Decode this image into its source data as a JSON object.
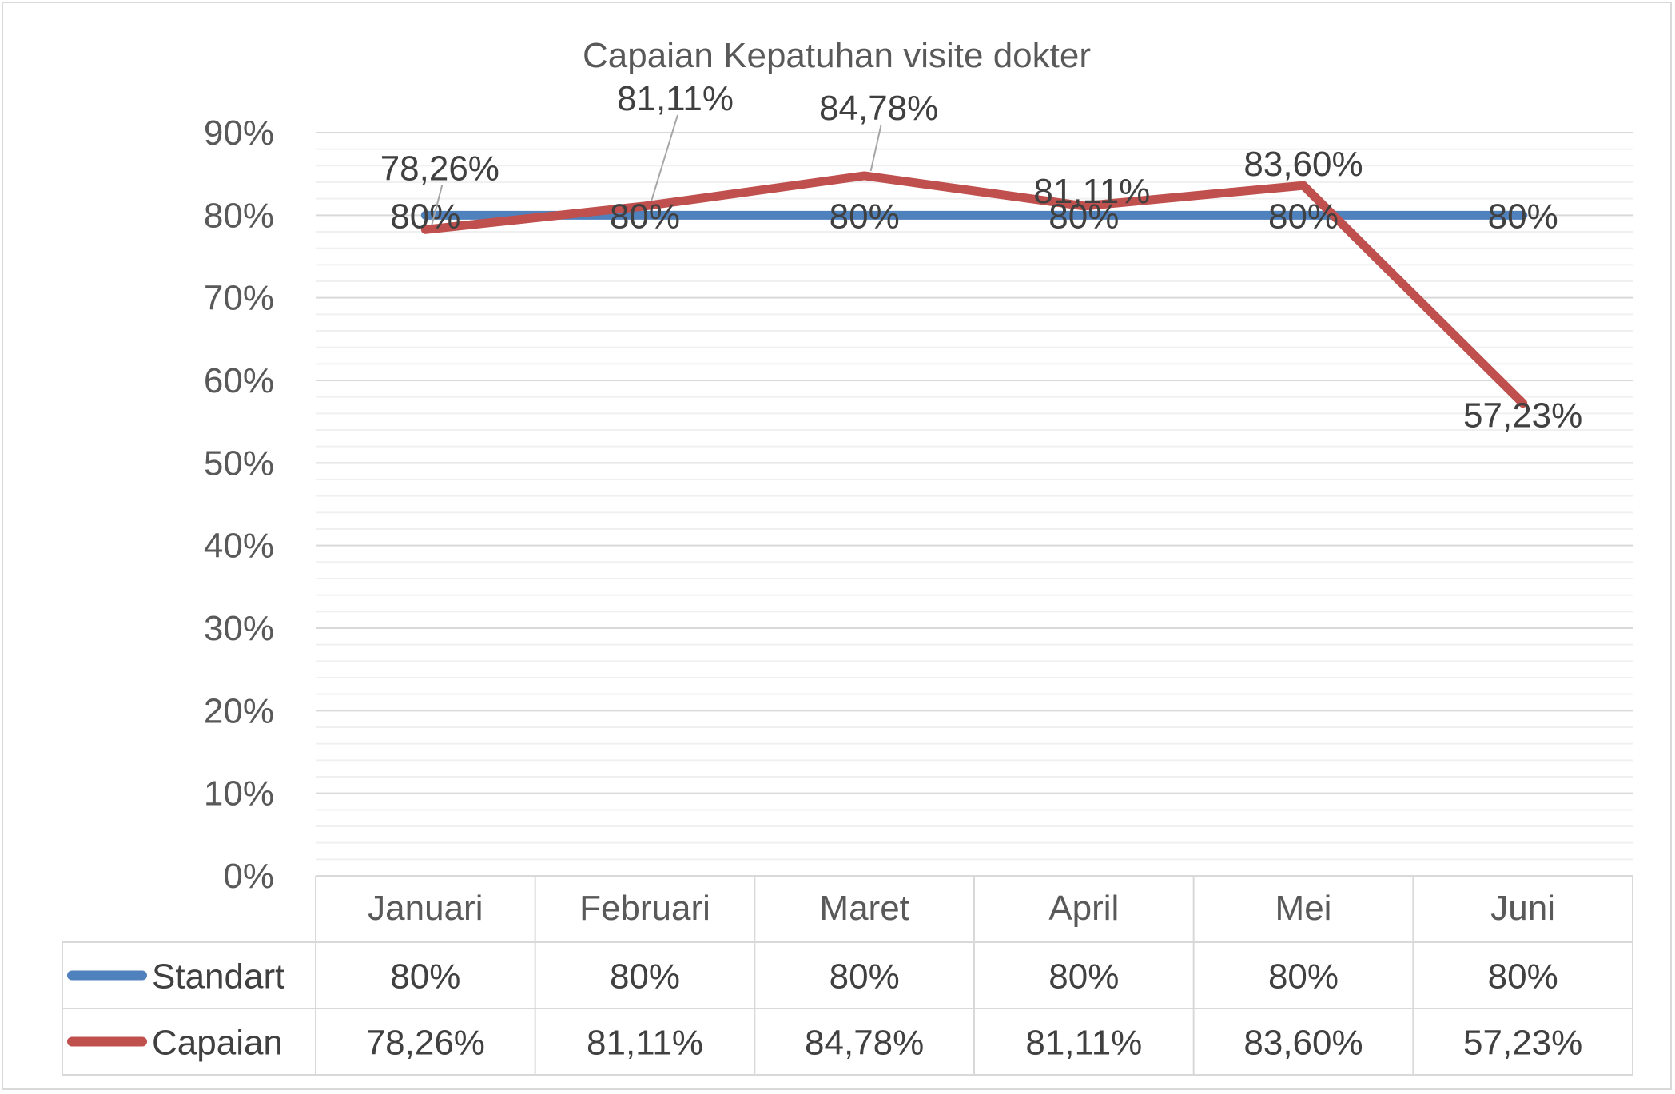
{
  "chart_data": {
    "type": "line",
    "title": "Capaian Kepatuhan visite dokter",
    "categories": [
      "Januari",
      "Februari",
      "Maret",
      "April",
      "Mei",
      "Juni"
    ],
    "y_ticks": [
      "0%",
      "10%",
      "20%",
      "30%",
      "40%",
      "50%",
      "60%",
      "70%",
      "80%",
      "90%"
    ],
    "ylim": [
      0,
      90
    ],
    "grid": true,
    "legend": "data-table",
    "series": [
      {
        "name": "Standart",
        "color": "#4f81bd",
        "values": [
          80,
          80,
          80,
          80,
          80,
          80
        ],
        "labels": [
          "80%",
          "80%",
          "80%",
          "80%",
          "80%",
          "80%"
        ]
      },
      {
        "name": "Capaian",
        "color": "#c0504d",
        "values": [
          78.26,
          81.11,
          84.78,
          81.11,
          83.6,
          57.23
        ],
        "labels": [
          "78,26%",
          "81,11%",
          "84,78%",
          "81,11%",
          "83,60%",
          "57,23%"
        ]
      }
    ]
  }
}
